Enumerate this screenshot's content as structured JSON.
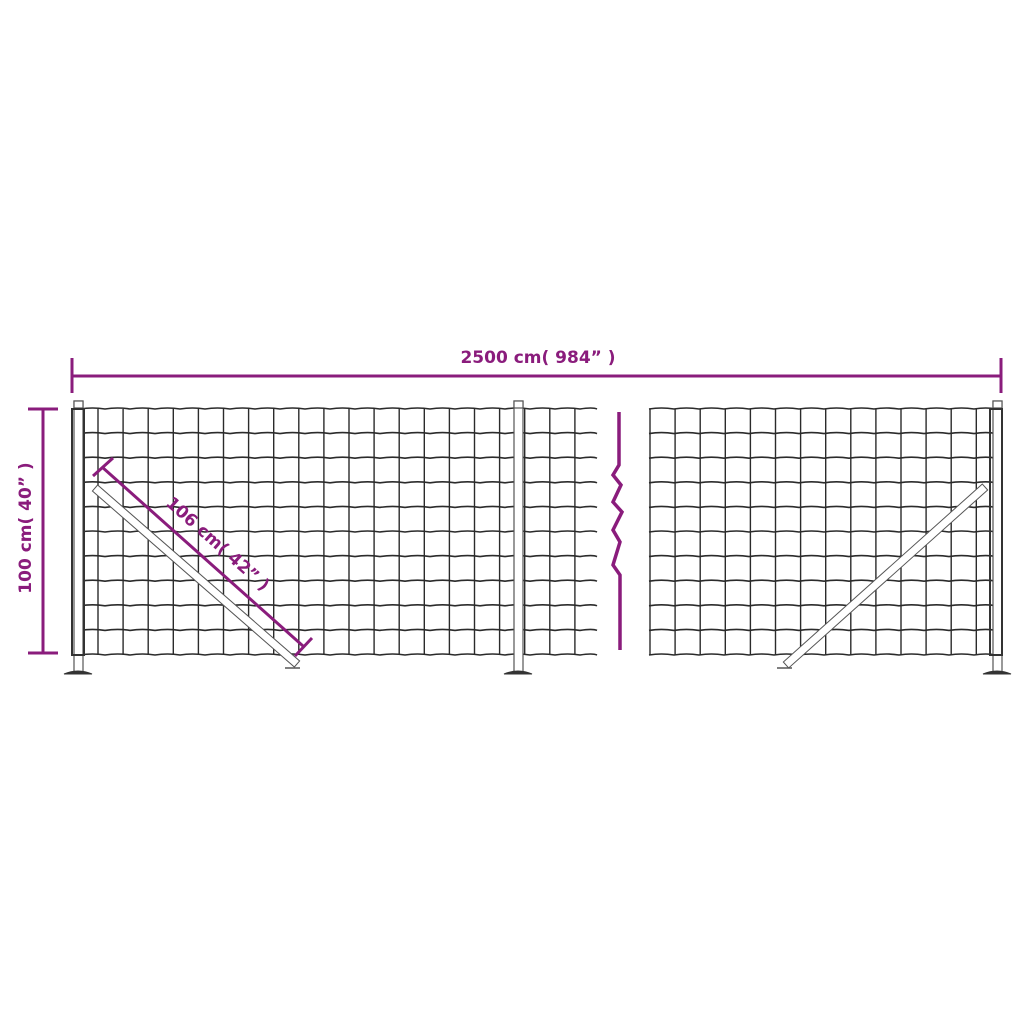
{
  "dimensions": {
    "length_label": "2500 cm( 984”  )",
    "height_label": "100 cm( 40”  )",
    "brace_label": "106 cm( 42”  )"
  },
  "colors": {
    "dimension": "#8a1c7c",
    "mesh": "#2b2b2b",
    "post": "#555555"
  },
  "icons": {
    "break_symbol": "zigzag-break-line"
  }
}
